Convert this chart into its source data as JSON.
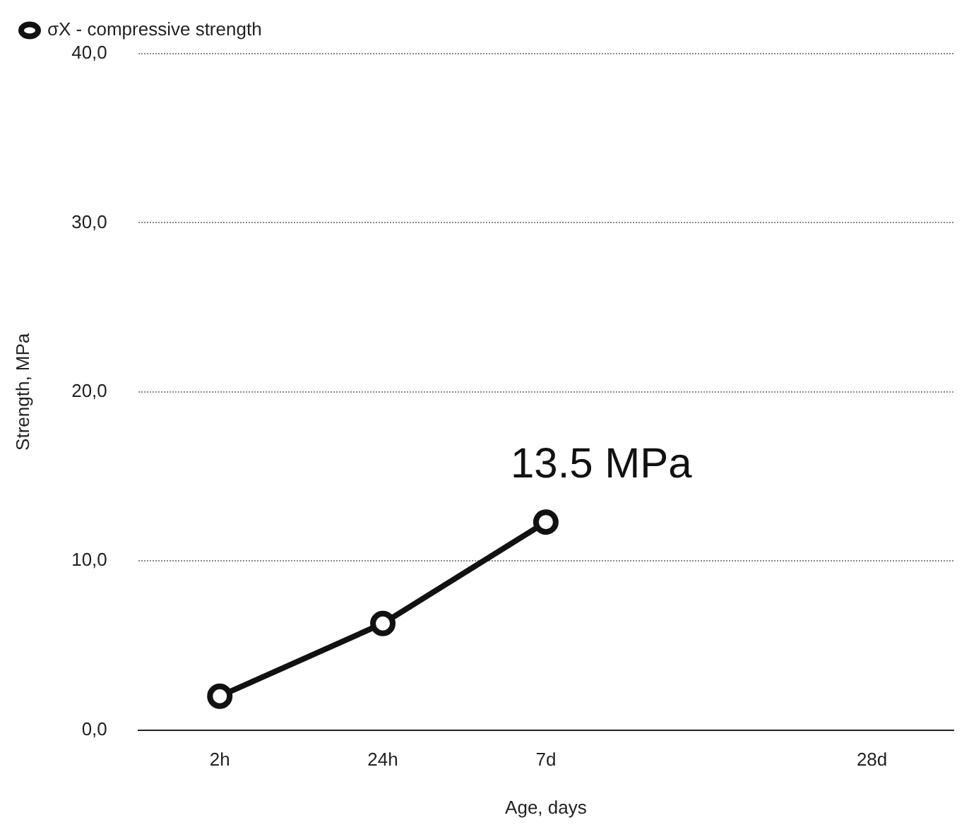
{
  "chart_data": {
    "type": "line",
    "xlabel": "Age, days",
    "ylabel": "Strength, MPa",
    "categories": [
      "2h",
      "24h",
      "7d",
      null,
      "28d"
    ],
    "series": [
      {
        "name": "σX - compressive strength",
        "color": "#111111",
        "values": [
          2.0,
          6.3,
          12.3,
          null,
          null
        ]
      }
    ],
    "ylim": [
      0,
      40
    ],
    "yticks": [
      {
        "value": 0,
        "label": "0,0"
      },
      {
        "value": 10,
        "label": "10,0"
      },
      {
        "value": 20,
        "label": "20,0"
      },
      {
        "value": 30,
        "label": "30,0"
      },
      {
        "value": 40,
        "label": "40,0"
      }
    ],
    "grid": "y",
    "legend": "top left",
    "marker": "circle",
    "line_style": "solid",
    "annotations": [
      {
        "text": "13.5 MPa",
        "x": "7d",
        "y": 12.3
      }
    ]
  }
}
